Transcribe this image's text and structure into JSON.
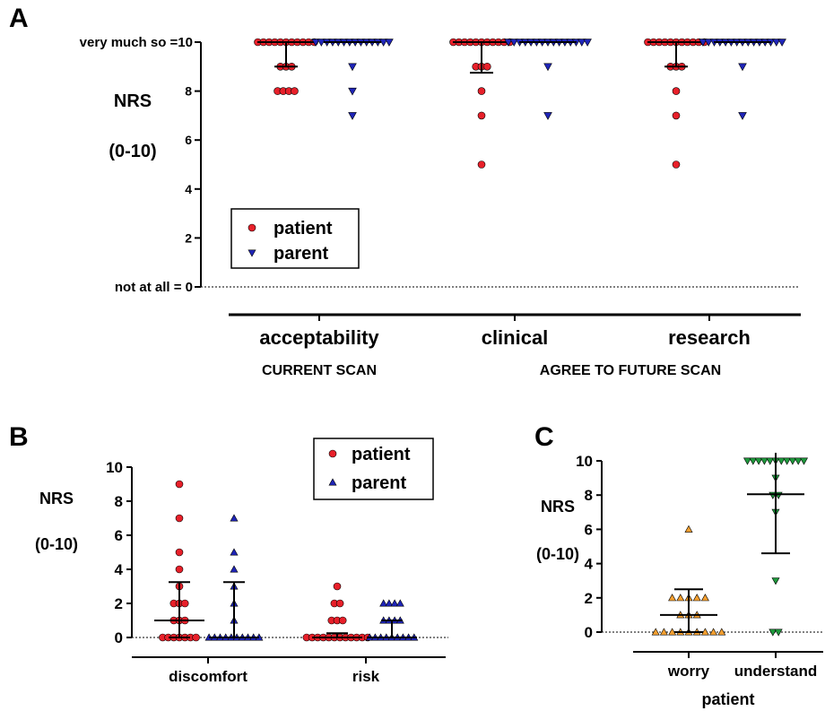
{
  "panels": {
    "A": {
      "letter": "A",
      "y_label_1": "NRS",
      "y_label_2": "(0-10)",
      "top_tick_label": "very much so =10",
      "bottom_tick_label": "not at all = 0",
      "group_label_current": "CURRENT SCAN",
      "group_label_future": "AGREE TO FUTURE SCAN"
    },
    "B": {
      "letter": "B",
      "y_label_1": "NRS",
      "y_label_2": "(0-10)"
    },
    "C": {
      "letter": "C",
      "y_label_1": "NRS",
      "y_label_2": "(0-10)",
      "xlabel": "patient"
    }
  },
  "colors": {
    "patient_red": "#e8202a",
    "parent_blue": "#1f25b8",
    "worry_orange": "#f5a030",
    "understand_green": "#1e9a3c"
  },
  "chart_data": [
    {
      "panel": "A",
      "type": "scatter",
      "categories": [
        "acceptability",
        "clinical",
        "research"
      ],
      "ylim": [
        0,
        10
      ],
      "yticks": [
        0,
        2,
        4,
        6,
        8,
        10
      ],
      "grid": false,
      "reference_line": 0,
      "legend": {
        "placement": "bottom-left",
        "entries": [
          "patient",
          "parent"
        ]
      },
      "series": [
        {
          "name": "patient",
          "marker": "circle",
          "color": "#e8202a",
          "values": [
            [
              10,
              10,
              10,
              10,
              10,
              10,
              10,
              10,
              10,
              10,
              10,
              9,
              9,
              9,
              8,
              8,
              8,
              8
            ],
            [
              10,
              10,
              10,
              10,
              10,
              10,
              10,
              10,
              10,
              10,
              10,
              9,
              9,
              9,
              8,
              7,
              5
            ],
            [
              10,
              10,
              10,
              10,
              10,
              10,
              10,
              10,
              10,
              10,
              10,
              9,
              9,
              9,
              8,
              7,
              5
            ]
          ],
          "median": [
            10,
            10,
            10
          ],
          "iqr": [
            [
              9,
              10
            ],
            [
              8.75,
              10
            ],
            [
              9,
              10
            ]
          ]
        },
        {
          "name": "parent",
          "marker": "triangle-down",
          "color": "#1f25b8",
          "values": [
            [
              10,
              10,
              10,
              10,
              10,
              10,
              10,
              10,
              10,
              10,
              10,
              10,
              10,
              10,
              9,
              8,
              7
            ],
            [
              10,
              10,
              10,
              10,
              10,
              10,
              10,
              10,
              10,
              10,
              10,
              10,
              10,
              10,
              10,
              9,
              7
            ],
            [
              10,
              10,
              10,
              10,
              10,
              10,
              10,
              10,
              10,
              10,
              10,
              10,
              10,
              10,
              10,
              9,
              7
            ]
          ],
          "median": [
            10,
            10,
            10
          ],
          "iqr": [
            [
              10,
              10
            ],
            [
              10,
              10
            ],
            [
              10,
              10
            ]
          ]
        }
      ]
    },
    {
      "panel": "B",
      "type": "scatter",
      "categories": [
        "discomfort",
        "risk"
      ],
      "ylim": [
        0,
        10
      ],
      "yticks": [
        0,
        2,
        4,
        6,
        8,
        10
      ],
      "grid": false,
      "reference_line": 0,
      "legend": {
        "placement": "top-right",
        "entries": [
          "patient",
          "parent"
        ]
      },
      "series": [
        {
          "name": "patient",
          "marker": "circle",
          "color": "#e8202a",
          "values": [
            [
              9,
              7,
              5,
              4,
              3,
              2,
              2,
              2,
              1,
              1,
              1,
              0,
              0,
              0,
              0,
              0,
              0,
              0
            ],
            [
              3,
              2,
              2,
              1,
              1,
              1,
              0,
              0,
              0,
              0,
              0,
              0,
              0,
              0,
              0,
              0,
              0,
              0
            ]
          ],
          "median": [
            1,
            0
          ],
          "iqr": [
            [
              0,
              3.25
            ],
            [
              0,
              0.25
            ]
          ]
        },
        {
          "name": "parent",
          "marker": "triangle-up",
          "color": "#1f25b8",
          "values": [
            [
              7,
              5,
              4,
              3,
              2,
              1,
              0,
              0,
              0,
              0,
              0,
              0,
              0,
              0,
              0,
              0
            ],
            [
              2,
              2,
              2,
              2,
              1,
              1,
              1,
              1,
              0,
              0,
              0,
              0,
              0,
              0,
              0,
              0,
              0
            ]
          ],
          "median": [
            0,
            0
          ],
          "iqr": [
            [
              0,
              3.25
            ],
            [
              0,
              1
            ]
          ]
        }
      ]
    },
    {
      "panel": "C",
      "type": "scatter",
      "categories": [
        "worry",
        "understand"
      ],
      "xlabel": "patient",
      "ylim": [
        0,
        10
      ],
      "yticks": [
        0,
        2,
        4,
        6,
        8,
        10
      ],
      "grid": false,
      "reference_line": 0,
      "series": [
        {
          "marker": "triangle-up",
          "color": "#f5a030",
          "category": "worry",
          "values": [
            6,
            2,
            2,
            2,
            2,
            2,
            1,
            1,
            1,
            0,
            0,
            0,
            0,
            0,
            0,
            0,
            0,
            0
          ],
          "mean": 1,
          "error": [
            0,
            2.5
          ]
        },
        {
          "marker": "triangle-down",
          "color": "#1e9a3c",
          "category": "understand",
          "values": [
            10,
            10,
            10,
            10,
            10,
            10,
            10,
            10,
            10,
            10,
            10,
            9,
            8,
            8,
            7,
            3,
            0,
            0
          ],
          "mean": 8.05,
          "error": [
            4.6,
            11.5
          ]
        }
      ]
    }
  ]
}
